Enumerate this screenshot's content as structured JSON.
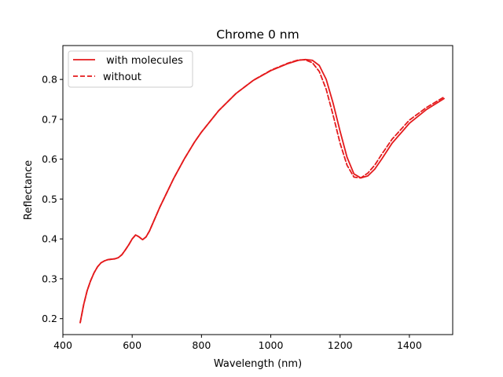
{
  "chart_data": {
    "type": "line",
    "title": "Chrome 0 nm",
    "xlabel": "Wavelength (nm)",
    "ylabel": "Reflectance",
    "xlim": [
      400,
      1525
    ],
    "ylim": [
      0.16,
      0.885
    ],
    "xticks": [
      400,
      600,
      800,
      1000,
      1200,
      1400
    ],
    "yticks": [
      0.2,
      0.3,
      0.4,
      0.5,
      0.6,
      0.7,
      0.8
    ],
    "xtick_labels": [
      "400",
      "600",
      "800",
      "1000",
      "1200",
      "1400"
    ],
    "ytick_labels": [
      "0.2",
      "0.3",
      "0.4",
      "0.5",
      "0.6",
      "0.7",
      "0.8"
    ],
    "grid": false,
    "legend_position": "top-left",
    "series": [
      {
        "name": " with molecules",
        "color": "#e41a1c",
        "style": "solid",
        "points": [
          [
            450,
            0.19
          ],
          [
            460,
            0.235
          ],
          [
            470,
            0.27
          ],
          [
            480,
            0.295
          ],
          [
            490,
            0.315
          ],
          [
            500,
            0.33
          ],
          [
            510,
            0.34
          ],
          [
            520,
            0.345
          ],
          [
            530,
            0.348
          ],
          [
            540,
            0.349
          ],
          [
            550,
            0.35
          ],
          [
            560,
            0.353
          ],
          [
            570,
            0.36
          ],
          [
            580,
            0.372
          ],
          [
            590,
            0.385
          ],
          [
            600,
            0.4
          ],
          [
            610,
            0.41
          ],
          [
            620,
            0.405
          ],
          [
            630,
            0.398
          ],
          [
            640,
            0.405
          ],
          [
            650,
            0.42
          ],
          [
            660,
            0.44
          ],
          [
            680,
            0.48
          ],
          [
            700,
            0.516
          ],
          [
            720,
            0.552
          ],
          [
            750,
            0.6
          ],
          [
            780,
            0.643
          ],
          [
            800,
            0.668
          ],
          [
            850,
            0.722
          ],
          [
            900,
            0.765
          ],
          [
            950,
            0.798
          ],
          [
            1000,
            0.822
          ],
          [
            1050,
            0.84
          ],
          [
            1080,
            0.848
          ],
          [
            1100,
            0.85
          ],
          [
            1120,
            0.848
          ],
          [
            1140,
            0.835
          ],
          [
            1160,
            0.8
          ],
          [
            1180,
            0.74
          ],
          [
            1200,
            0.67
          ],
          [
            1220,
            0.605
          ],
          [
            1240,
            0.563
          ],
          [
            1260,
            0.553
          ],
          [
            1280,
            0.558
          ],
          [
            1300,
            0.575
          ],
          [
            1320,
            0.6
          ],
          [
            1350,
            0.64
          ],
          [
            1400,
            0.69
          ],
          [
            1450,
            0.725
          ],
          [
            1500,
            0.752
          ]
        ]
      },
      {
        "name": "without",
        "color": "#e41a1c",
        "style": "dashed",
        "points": [
          [
            450,
            0.19
          ],
          [
            460,
            0.235
          ],
          [
            470,
            0.27
          ],
          [
            480,
            0.295
          ],
          [
            490,
            0.315
          ],
          [
            500,
            0.33
          ],
          [
            510,
            0.34
          ],
          [
            520,
            0.345
          ],
          [
            530,
            0.348
          ],
          [
            540,
            0.349
          ],
          [
            550,
            0.35
          ],
          [
            560,
            0.353
          ],
          [
            570,
            0.36
          ],
          [
            580,
            0.372
          ],
          [
            590,
            0.385
          ],
          [
            600,
            0.4
          ],
          [
            610,
            0.41
          ],
          [
            620,
            0.405
          ],
          [
            630,
            0.398
          ],
          [
            640,
            0.405
          ],
          [
            650,
            0.42
          ],
          [
            660,
            0.44
          ],
          [
            680,
            0.48
          ],
          [
            700,
            0.516
          ],
          [
            720,
            0.552
          ],
          [
            750,
            0.6
          ],
          [
            780,
            0.643
          ],
          [
            800,
            0.668
          ],
          [
            850,
            0.722
          ],
          [
            900,
            0.765
          ],
          [
            950,
            0.798
          ],
          [
            1000,
            0.823
          ],
          [
            1050,
            0.841
          ],
          [
            1080,
            0.849
          ],
          [
            1100,
            0.849
          ],
          [
            1120,
            0.842
          ],
          [
            1140,
            0.82
          ],
          [
            1160,
            0.775
          ],
          [
            1180,
            0.71
          ],
          [
            1200,
            0.64
          ],
          [
            1220,
            0.585
          ],
          [
            1240,
            0.555
          ],
          [
            1260,
            0.553
          ],
          [
            1280,
            0.565
          ],
          [
            1300,
            0.585
          ],
          [
            1320,
            0.612
          ],
          [
            1350,
            0.65
          ],
          [
            1400,
            0.698
          ],
          [
            1450,
            0.73
          ],
          [
            1500,
            0.756
          ]
        ]
      }
    ]
  }
}
